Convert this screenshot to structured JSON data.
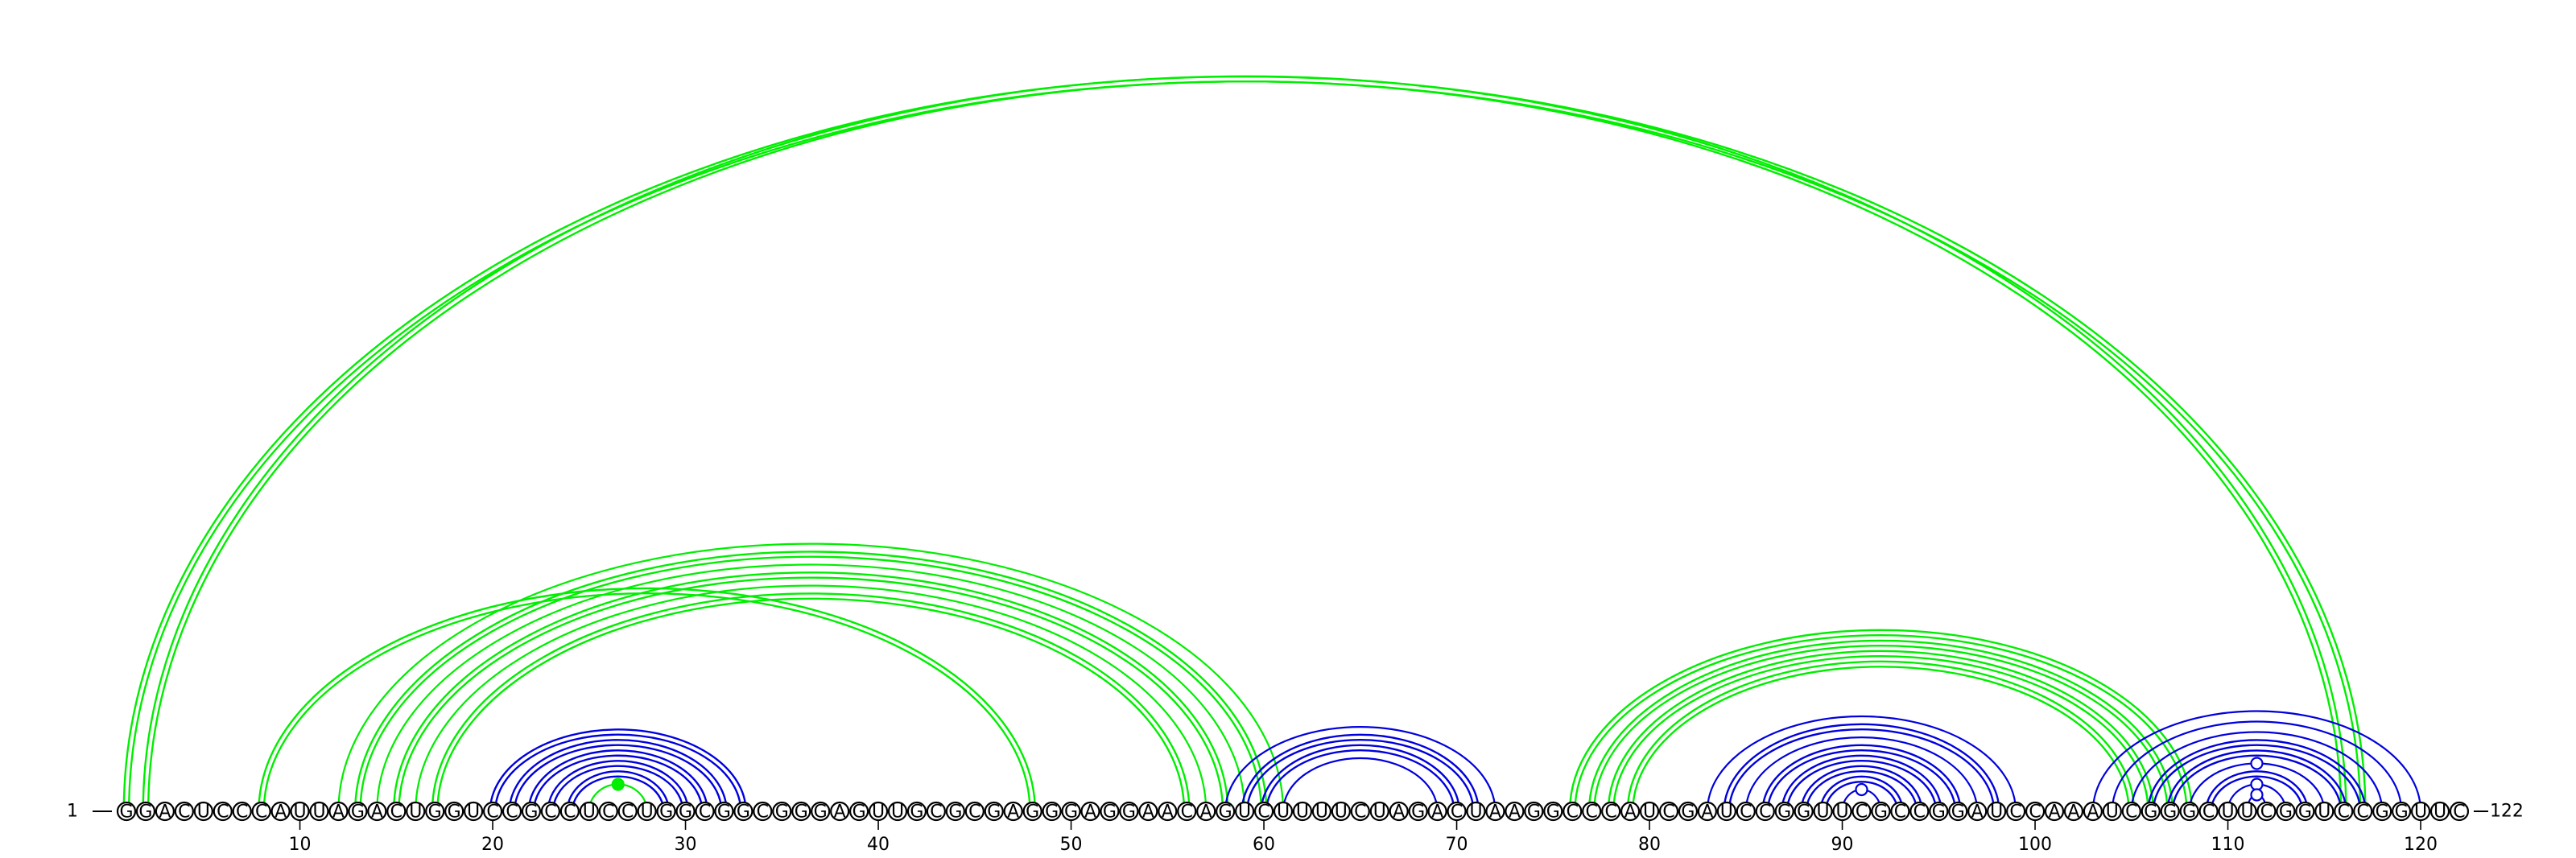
{
  "sequence": "GGACUCCCAUUAGACUGGUCCGCCUCCUGGCGGCGGGAGUUGCGCGAGGGAGGAACAGUCUUUUCUAGACUAAGGCCCAUCGAUCCGGUUCGCCGGAUCCAAAUCGGGCUUCGGUCCGGUUC",
  "start_label": "1",
  "end_label": "122",
  "ticks": [
    {
      "pos": 10,
      "label": "10"
    },
    {
      "pos": 20,
      "label": "20"
    },
    {
      "pos": 30,
      "label": "30"
    },
    {
      "pos": 40,
      "label": "40"
    },
    {
      "pos": 50,
      "label": "50"
    },
    {
      "pos": 60,
      "label": "60"
    },
    {
      "pos": 70,
      "label": "70"
    },
    {
      "pos": 80,
      "label": "80"
    },
    {
      "pos": 90,
      "label": "90"
    },
    {
      "pos": 100,
      "label": "100"
    },
    {
      "pos": 110,
      "label": "110"
    },
    {
      "pos": 120,
      "label": "120"
    }
  ],
  "colors": {
    "green": "#00ee00",
    "blue": "#0000dd",
    "text": "#000000"
  },
  "pairs": [
    {
      "i": 1,
      "j": 117,
      "color": "green",
      "double": true
    },
    {
      "i": 2,
      "j": 116,
      "color": "green",
      "double": true
    },
    {
      "i": 8,
      "j": 48,
      "color": "green",
      "double": true
    },
    {
      "i": 12,
      "j": 61,
      "color": "green",
      "double": false
    },
    {
      "i": 13,
      "j": 60,
      "color": "green",
      "double": true
    },
    {
      "i": 14,
      "j": 59,
      "color": "green",
      "double": false
    },
    {
      "i": 15,
      "j": 58,
      "color": "green",
      "double": true
    },
    {
      "i": 16,
      "j": 57,
      "color": "green",
      "double": false
    },
    {
      "i": 17,
      "j": 56,
      "color": "green",
      "double": true
    },
    {
      "i": 20,
      "j": 33,
      "color": "blue",
      "double": true
    },
    {
      "i": 21,
      "j": 32,
      "color": "blue",
      "double": true
    },
    {
      "i": 22,
      "j": 31,
      "color": "blue",
      "double": true
    },
    {
      "i": 23,
      "j": 30,
      "color": "blue",
      "double": true
    },
    {
      "i": 24,
      "j": 29,
      "color": "blue",
      "double": true
    },
    {
      "i": 25,
      "j": 28,
      "color": "green",
      "double": false,
      "dot": "filled"
    },
    {
      "i": 58,
      "j": 72,
      "color": "blue",
      "double": false
    },
    {
      "i": 59,
      "j": 71,
      "color": "blue",
      "double": true
    },
    {
      "i": 60,
      "j": 70,
      "color": "blue",
      "double": true
    },
    {
      "i": 61,
      "j": 69,
      "color": "blue",
      "double": false
    },
    {
      "i": 76,
      "j": 108,
      "color": "green",
      "double": true
    },
    {
      "i": 77,
      "j": 107,
      "color": "green",
      "double": true
    },
    {
      "i": 78,
      "j": 106,
      "color": "green",
      "double": true
    },
    {
      "i": 79,
      "j": 105,
      "color": "green",
      "double": true
    },
    {
      "i": 83,
      "j": 99,
      "color": "blue",
      "double": false
    },
    {
      "i": 84,
      "j": 98,
      "color": "blue",
      "double": true
    },
    {
      "i": 85,
      "j": 97,
      "color": "blue",
      "double": false
    },
    {
      "i": 86,
      "j": 96,
      "color": "blue",
      "double": true
    },
    {
      "i": 87,
      "j": 95,
      "color": "blue",
      "double": true
    },
    {
      "i": 88,
      "j": 94,
      "color": "blue",
      "double": true
    },
    {
      "i": 89,
      "j": 93,
      "color": "blue",
      "double": true
    },
    {
      "i": 90,
      "j": 92,
      "color": "blue",
      "double": false,
      "dot": "open"
    },
    {
      "i": 103,
      "j": 120,
      "color": "blue",
      "double": false
    },
    {
      "i": 104,
      "j": 119,
      "color": "blue",
      "double": false
    },
    {
      "i": 105,
      "j": 118,
      "color": "blue",
      "double": false
    },
    {
      "i": 106,
      "j": 117,
      "color": "blue",
      "double": true
    },
    {
      "i": 107,
      "j": 116,
      "color": "blue",
      "double": true
    },
    {
      "i": 108,
      "j": 115,
      "color": "blue",
      "double": false,
      "dot": "open"
    },
    {
      "i": 109,
      "j": 114,
      "color": "blue",
      "double": true
    },
    {
      "i": 110,
      "j": 113,
      "color": "blue",
      "double": false,
      "dot": "open"
    },
    {
      "i": 111,
      "j": 112,
      "color": "blue",
      "double": false,
      "dot": "open"
    }
  ]
}
